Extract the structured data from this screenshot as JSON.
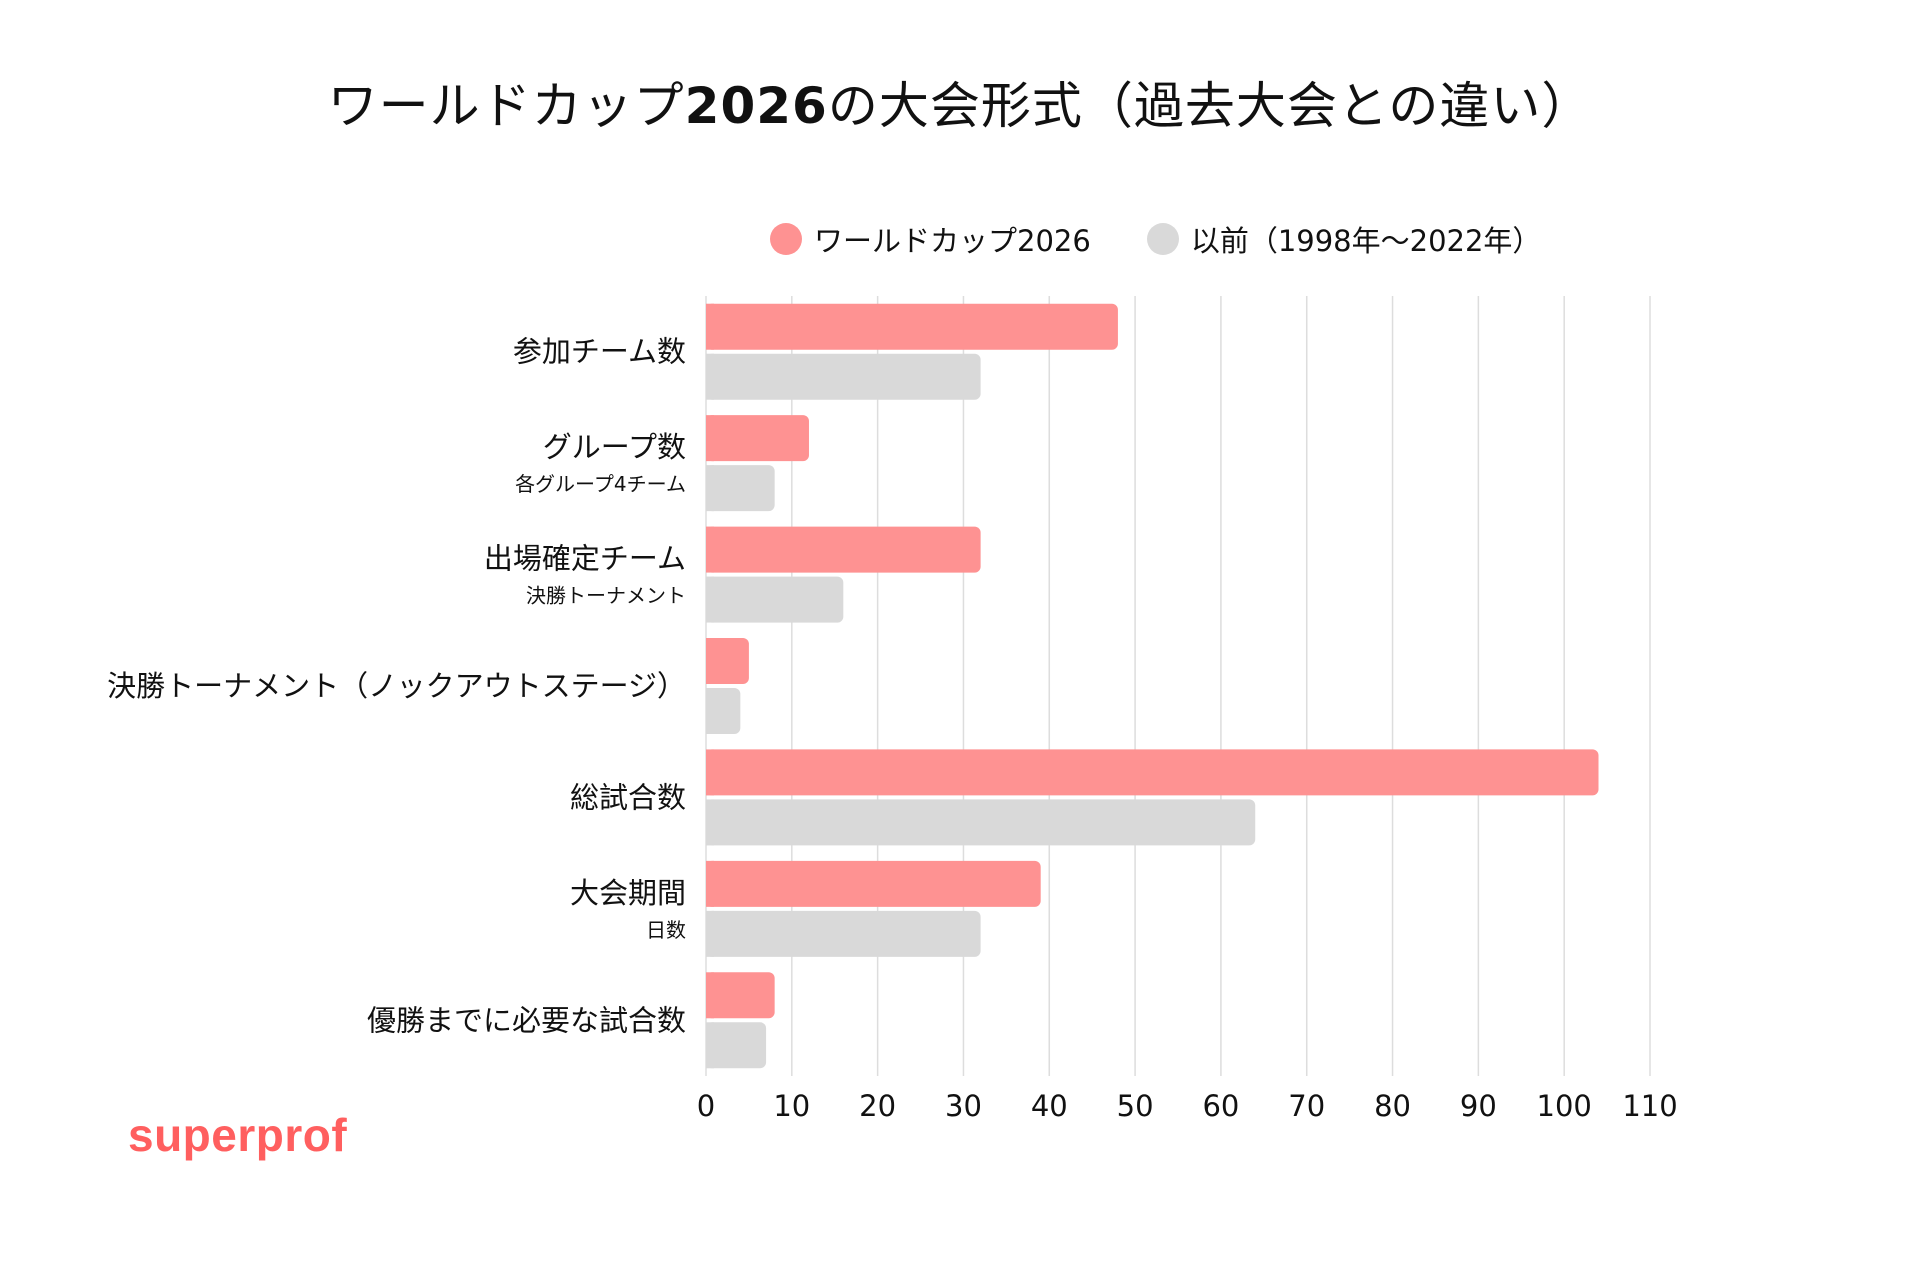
{
  "title_prefix": "ワールドカップ",
  "title_bold": "2026",
  "title_suffix": "の大会形式（過去大会との違い）",
  "logo": {
    "text": "superprof"
  },
  "colors": {
    "series_2026": "#fe9292",
    "series_past": "#d9d9d9",
    "grid": "#dddddd",
    "logo": "#ff5f5f",
    "text": "#111111"
  },
  "chart_data": {
    "type": "bar",
    "orientation": "horizontal",
    "categories": [
      {
        "label": "参加チーム数",
        "sublabel": ""
      },
      {
        "label": "グループ数",
        "sublabel": "各グループ4チーム"
      },
      {
        "label": "出場確定チーム",
        "sublabel": "決勝トーナメント"
      },
      {
        "label": "決勝トーナメント（ノックアウトステージ）",
        "sublabel": ""
      },
      {
        "label": "総試合数",
        "sublabel": ""
      },
      {
        "label": "大会期間",
        "sublabel": "日数"
      },
      {
        "label": "優勝までに必要な試合数",
        "sublabel": ""
      }
    ],
    "series": [
      {
        "name": "ワールドカップ2026",
        "values": [
          48,
          12,
          32,
          5,
          104,
          39,
          8
        ]
      },
      {
        "name": "以前（1998年〜2022年）",
        "values": [
          32,
          8,
          16,
          4,
          64,
          32,
          7
        ]
      }
    ],
    "xlim": [
      0,
      110
    ],
    "xticks": [
      0,
      10,
      20,
      30,
      40,
      50,
      60,
      70,
      80,
      90,
      100,
      110
    ],
    "grid": true,
    "legend_position": "top"
  }
}
